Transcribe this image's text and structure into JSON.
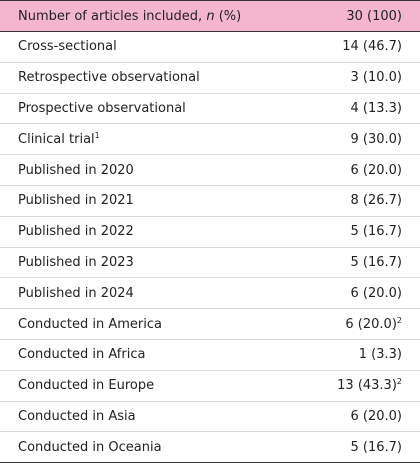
{
  "table": {
    "header": {
      "label_parts": [
        "Number of articles included, ",
        "n",
        " (%)"
      ],
      "value": "30 (100)"
    },
    "rows": [
      {
        "label": "Cross-sectional",
        "value": "14 (46.7)"
      },
      {
        "label": "Retrospective observational",
        "value": "3 (10.0)"
      },
      {
        "label": "Prospective observational",
        "value": "4 (13.3)"
      },
      {
        "label": "Clinical trial",
        "label_note": "1",
        "value": "9 (30.0)"
      },
      {
        "label": "Published in 2020",
        "value": "6 (20.0)"
      },
      {
        "label": "Published in 2021",
        "value": "8 (26.7)"
      },
      {
        "label": "Published in 2022",
        "value": "5 (16.7)"
      },
      {
        "label": "Published in 2023",
        "value": "5 (16.7)"
      },
      {
        "label": "Published in 2024",
        "value": "6 (20.0)"
      },
      {
        "label": "Conducted in America",
        "value": "6 (20.0)",
        "value_note": "2"
      },
      {
        "label": "Conducted in Africa",
        "value": "1 (3.3)"
      },
      {
        "label": "Conducted in Europe",
        "value": "13 (43.3)",
        "value_note": "2"
      },
      {
        "label": "Conducted in Asia",
        "value": "6 (20.0)"
      },
      {
        "label": "Conducted in Oceania",
        "value": "5 (16.7)"
      }
    ]
  }
}
